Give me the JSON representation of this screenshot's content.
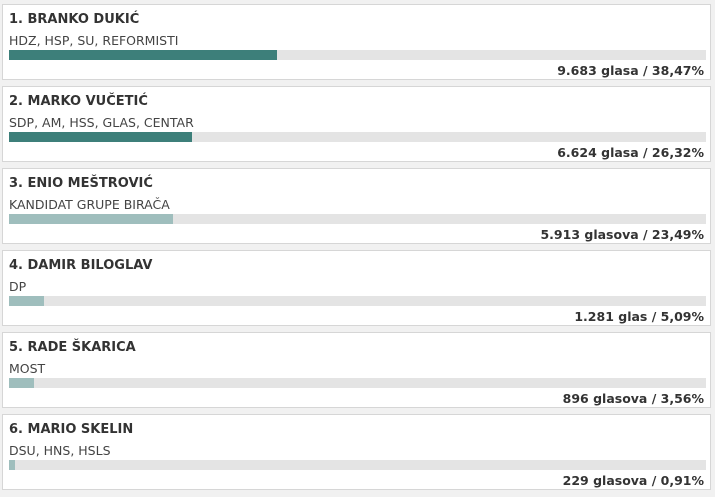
{
  "candidates": [
    {
      "name": "1. BRANKO DUKIĆ",
      "party": "HDZ, HSP, SU, REFORMISTI",
      "result": "9.683 glasa / 38,47%",
      "share": 38.47,
      "bar_color": "#3d7f7a"
    },
    {
      "name": "2. MARKO VUČETIĆ",
      "party": "SDP, AM, HSS, GLAS, CENTAR",
      "result": "6.624 glasa / 26,32%",
      "share": 26.32,
      "bar_color": "#3d7f7a"
    },
    {
      "name": "3. ENIO MEŠTROVIĆ",
      "party": "KANDIDAT GRUPE BIRAČA",
      "result": "5.913 glasova / 23,49%",
      "share": 23.49,
      "bar_color": "#9fbebd"
    },
    {
      "name": "4. DAMIR BILOGLAV",
      "party": "DP",
      "result": "1.281 glas / 5,09%",
      "share": 5.09,
      "bar_color": "#9fbebd"
    },
    {
      "name": "5. RADE ŠKARICA",
      "party": "MOST",
      "result": "896 glasova / 3,56%",
      "share": 3.56,
      "bar_color": "#9fbebd"
    },
    {
      "name": "6. MARIO SKELIN",
      "party": "DSU, HNS, HSLS",
      "result": "229 glasova / 0,91%",
      "share": 0.91,
      "bar_color": "#9fbebd"
    }
  ]
}
